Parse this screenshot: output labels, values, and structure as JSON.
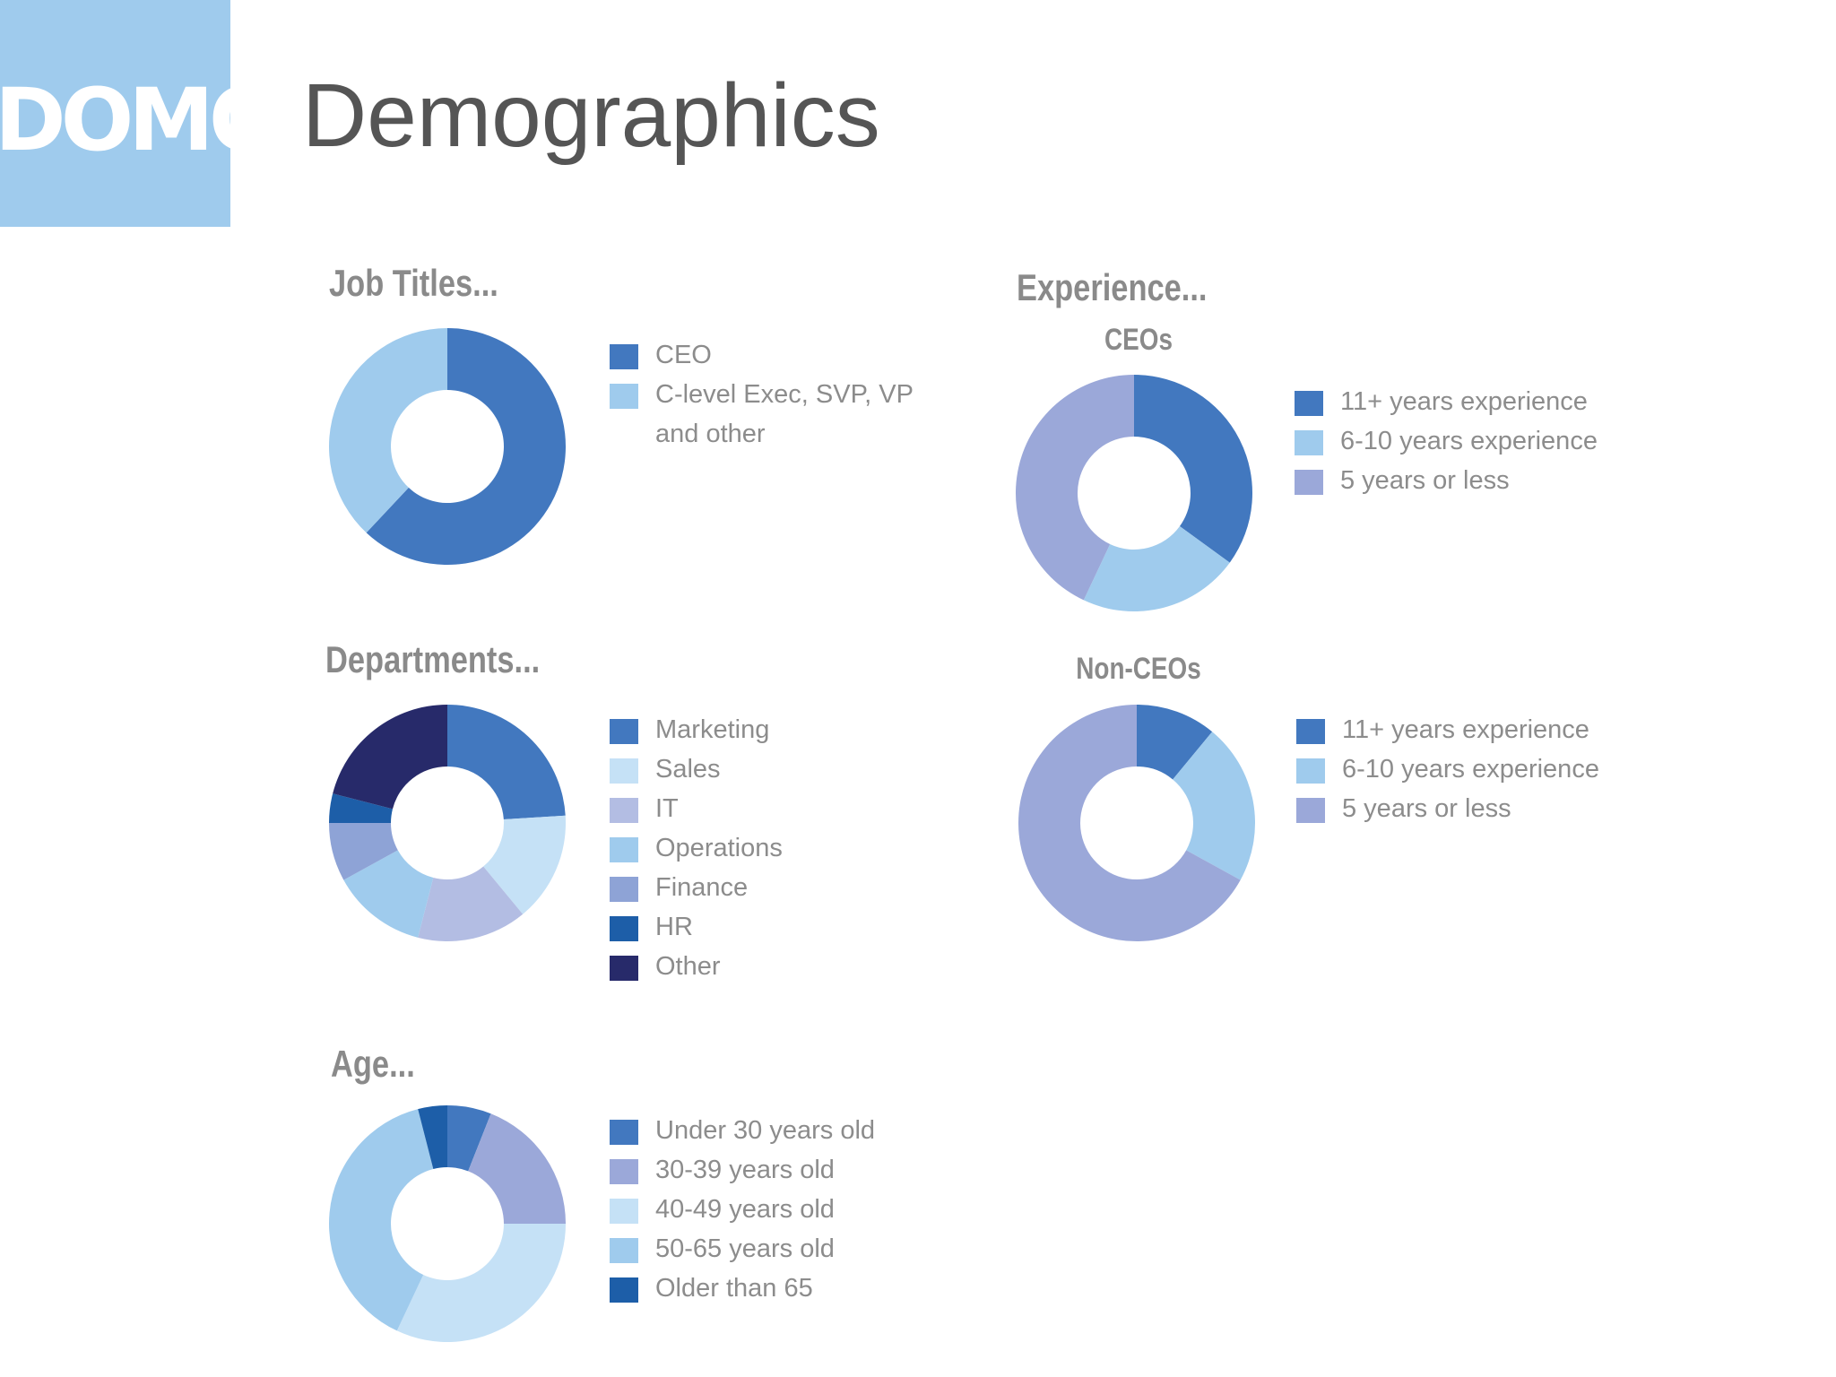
{
  "logo": {
    "text": "DOMO",
    "color": "#9fcbed"
  },
  "title": "Demographics",
  "chart_data": [
    {
      "id": "job-titles",
      "type": "pie",
      "title": "Job Titles...",
      "labels": [
        "CEO",
        "C-level Exec, SVP, VP and other"
      ],
      "values": [
        62,
        38
      ],
      "colors": [
        "#4278bf",
        "#9fcbed"
      ]
    },
    {
      "id": "departments",
      "type": "pie",
      "title": "Departments...",
      "labels": [
        "Marketing",
        "Sales",
        "IT",
        "Operations",
        "Finance",
        "HR",
        "Other"
      ],
      "values": [
        24,
        15,
        15,
        13,
        8,
        4,
        21
      ],
      "colors": [
        "#4278bf",
        "#c5e1f6",
        "#b3bde3",
        "#9fcbed",
        "#8ea3d6",
        "#1d5ea8",
        "#272a6a"
      ]
    },
    {
      "id": "age",
      "type": "pie",
      "title": "Age...",
      "labels": [
        "Under 30 years old",
        "30-39 years old",
        "40-49 years old",
        "50-65 years old",
        "Older than 65"
      ],
      "values": [
        6,
        19,
        32,
        39,
        4
      ],
      "colors": [
        "#4278bf",
        "#9ba8d9",
        "#c5e1f6",
        "#9fcbed",
        "#1d5ea8"
      ]
    },
    {
      "id": "experience-ceos",
      "type": "pie",
      "title": "Experience...",
      "subtitle": "CEOs",
      "labels": [
        "11+ years experience",
        "6-10 years experience",
        "5 years or less"
      ],
      "values": [
        35,
        22,
        43
      ],
      "colors": [
        "#4278bf",
        "#9fcbed",
        "#9ba8d9"
      ]
    },
    {
      "id": "experience-non-ceos",
      "type": "pie",
      "title": "",
      "subtitle": "Non-CEOs",
      "labels": [
        "11+ years experience",
        "6-10 years experience",
        "5 years or less"
      ],
      "values": [
        11,
        22,
        67
      ],
      "colors": [
        "#4278bf",
        "#9fcbed",
        "#9ba8d9"
      ]
    }
  ]
}
